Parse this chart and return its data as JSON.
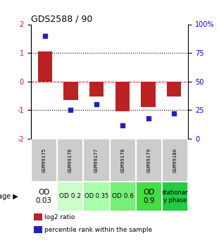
{
  "title": "GDS2588 / 90",
  "samples": [
    "GSM99175",
    "GSM99176",
    "GSM99177",
    "GSM99178",
    "GSM99179",
    "GSM99180"
  ],
  "log2_ratio": [
    1.05,
    -0.65,
    -0.52,
    -1.05,
    -0.88,
    -0.52
  ],
  "percentile_rank": [
    90,
    25,
    30,
    12,
    18,
    22
  ],
  "bar_color": "#bb2222",
  "dot_color": "#2222bb",
  "ylim_left": [
    -2,
    2
  ],
  "ylim_right": [
    0,
    100
  ],
  "yticks_left": [
    -2,
    -1,
    0,
    1,
    2
  ],
  "yticks_right": [
    0,
    25,
    50,
    75,
    100
  ],
  "ytick_labels_right": [
    "0",
    "25",
    "50",
    "75",
    "100%"
  ],
  "hlines": [
    -1,
    0,
    1
  ],
  "hline_styles": [
    "dotted",
    "dashed",
    "dotted"
  ],
  "hline_colors": [
    "black",
    "red",
    "black"
  ],
  "age_labels": [
    "OD\n0.03",
    "OD 0.2",
    "OD 0.35",
    "OD 0.6",
    "OD\n0.9",
    "stationar\ny phase"
  ],
  "age_colors": [
    "#ffffff",
    "#ccffcc",
    "#aaffaa",
    "#77ee77",
    "#44dd44",
    "#22cc44"
  ],
  "age_fontsizes": [
    7.5,
    6.5,
    6.0,
    6.5,
    7.5,
    6.0
  ],
  "sample_bg_color": "#cccccc",
  "legend_red_label": "log2 ratio",
  "legend_blue_label": "percentile rank within the sample",
  "age_row_label": "age"
}
